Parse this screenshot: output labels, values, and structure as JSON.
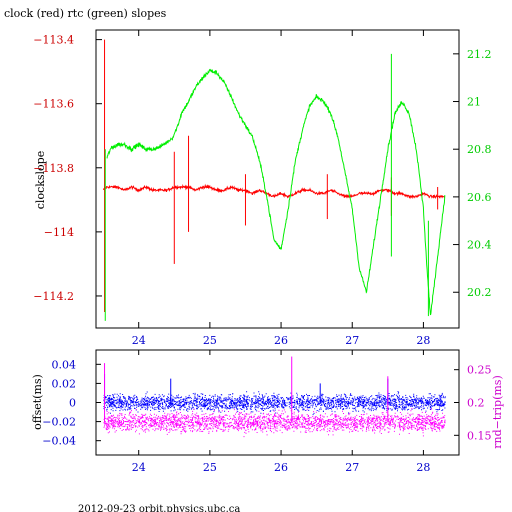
{
  "title": "clock (red) rtc (green) slopes",
  "footer": "2012-09-23  orbit.physics.ubc.ca",
  "colors": {
    "clock": "#ff0000",
    "rtc": "#00ee00",
    "offset": "#0000ff",
    "rndtrip": "#ff00ff",
    "left_axis_top": "#cc0000",
    "right_axis_top": "#00cc00",
    "left_axis_bottom": "#0000cc",
    "right_axis_bottom": "#cc00cc",
    "x_ticks": "#0000cc"
  },
  "chart_data": [
    {
      "type": "line",
      "title": "clock (red) rtc (green) slopes",
      "xlabel": "",
      "ylabel": "clockslope",
      "y2label": "",
      "xlim": [
        23.4,
        28.5
      ],
      "ylim": [
        -114.3,
        -113.37
      ],
      "y2lim": [
        20.05,
        21.3
      ],
      "x_ticks": [
        24,
        25,
        26,
        27,
        28
      ],
      "y_ticks": [
        -113.4,
        -113.6,
        -113.8,
        -114,
        -114.2
      ],
      "y_tick_labels": [
        "−113.4",
        "−113.6",
        "−113.8",
        "−114",
        "−114.2"
      ],
      "y2_ticks": [
        20.2,
        20.4,
        20.6,
        20.8,
        21,
        21.2
      ],
      "series": [
        {
          "name": "clock",
          "axis": "left",
          "x": [
            23.5,
            23.55,
            23.6,
            23.7,
            23.8,
            23.9,
            24.0,
            24.1,
            24.2,
            24.3,
            24.4,
            24.5,
            24.6,
            24.7,
            24.8,
            24.9,
            25.0,
            25.1,
            25.2,
            25.3,
            25.4,
            25.5,
            25.6,
            25.7,
            25.8,
            25.9,
            26.0,
            26.1,
            26.2,
            26.3,
            26.4,
            26.5,
            26.6,
            26.7,
            26.8,
            26.9,
            27.0,
            27.1,
            27.2,
            27.3,
            27.4,
            27.5,
            27.6,
            27.7,
            27.8,
            27.9,
            28.0,
            28.1,
            28.2,
            28.3
          ],
          "y": [
            -113.87,
            -113.86,
            -113.86,
            -113.86,
            -113.87,
            -113.86,
            -113.87,
            -113.86,
            -113.87,
            -113.87,
            -113.87,
            -113.86,
            -113.86,
            -113.86,
            -113.87,
            -113.86,
            -113.86,
            -113.87,
            -113.87,
            -113.86,
            -113.87,
            -113.87,
            -113.88,
            -113.87,
            -113.88,
            -113.89,
            -113.88,
            -113.89,
            -113.88,
            -113.87,
            -113.87,
            -113.88,
            -113.88,
            -113.87,
            -113.88,
            -113.89,
            -113.89,
            -113.88,
            -113.88,
            -113.88,
            -113.87,
            -113.87,
            -113.88,
            -113.88,
            -113.89,
            -113.89,
            -113.88,
            -113.89,
            -113.89,
            -113.89
          ]
        },
        {
          "name": "rtc",
          "axis": "right",
          "x": [
            23.55,
            23.6,
            23.7,
            23.8,
            23.9,
            24.0,
            24.1,
            24.2,
            24.3,
            24.4,
            24.48,
            24.55,
            24.6,
            24.7,
            24.8,
            24.9,
            25.0,
            25.1,
            25.2,
            25.3,
            25.4,
            25.5,
            25.6,
            25.7,
            25.8,
            25.9,
            26.0,
            26.1,
            26.2,
            26.3,
            26.4,
            26.5,
            26.6,
            26.7,
            26.8,
            26.9,
            27.0,
            27.1,
            27.2,
            27.3,
            27.4,
            27.5,
            27.6,
            27.7,
            27.8,
            27.9,
            28.0,
            28.05,
            28.1,
            28.2,
            28.3
          ],
          "y": [
            20.76,
            20.8,
            20.82,
            20.82,
            20.8,
            20.82,
            20.8,
            20.8,
            20.81,
            20.83,
            20.85,
            20.9,
            20.95,
            21.0,
            21.06,
            21.1,
            21.13,
            21.12,
            21.08,
            21.02,
            20.95,
            20.9,
            20.85,
            20.75,
            20.6,
            20.42,
            20.38,
            20.55,
            20.75,
            20.88,
            20.98,
            21.02,
            21.0,
            20.95,
            20.85,
            20.7,
            20.55,
            20.3,
            20.2,
            20.4,
            20.6,
            20.8,
            20.95,
            21.0,
            20.95,
            20.8,
            20.55,
            20.3,
            20.1,
            20.35,
            20.6
          ]
        }
      ],
      "annotations": []
    },
    {
      "type": "scatter",
      "title": "",
      "xlabel": "",
      "ylabel": "offset(ms)",
      "y2label": "rnd−trip(ms)",
      "xlim": [
        23.4,
        28.5
      ],
      "ylim": [
        -0.055,
        0.055
      ],
      "y2lim": [
        0.12,
        0.28
      ],
      "x_ticks": [
        24,
        25,
        26,
        27,
        28
      ],
      "y_ticks": [
        0.04,
        0.02,
        0,
        -0.02,
        -0.04
      ],
      "y_tick_labels": [
        "0.04",
        "0.02",
        "0",
        "−0.02",
        "−0.04"
      ],
      "y2_ticks": [
        0.15,
        0.2,
        0.25
      ],
      "series": [
        {
          "name": "offset",
          "axis": "left",
          "x_range": [
            23.5,
            28.3
          ],
          "center": 0.0,
          "spread": 0.012,
          "spikes": [
            {
              "x": 23.52,
              "y": 0.03
            },
            {
              "x": 24.45,
              "y": 0.025
            },
            {
              "x": 26.55,
              "y": 0.02
            },
            {
              "x": 27.5,
              "y": 0.025
            }
          ]
        },
        {
          "name": "rndtrip",
          "axis": "right",
          "x_range": [
            23.5,
            28.3
          ],
          "center": 0.17,
          "spread": 0.02,
          "spikes": [
            {
              "x": 23.52,
              "y": 0.26
            },
            {
              "x": 26.15,
              "y": 0.27
            },
            {
              "x": 27.5,
              "y": 0.24
            }
          ]
        }
      ]
    }
  ]
}
